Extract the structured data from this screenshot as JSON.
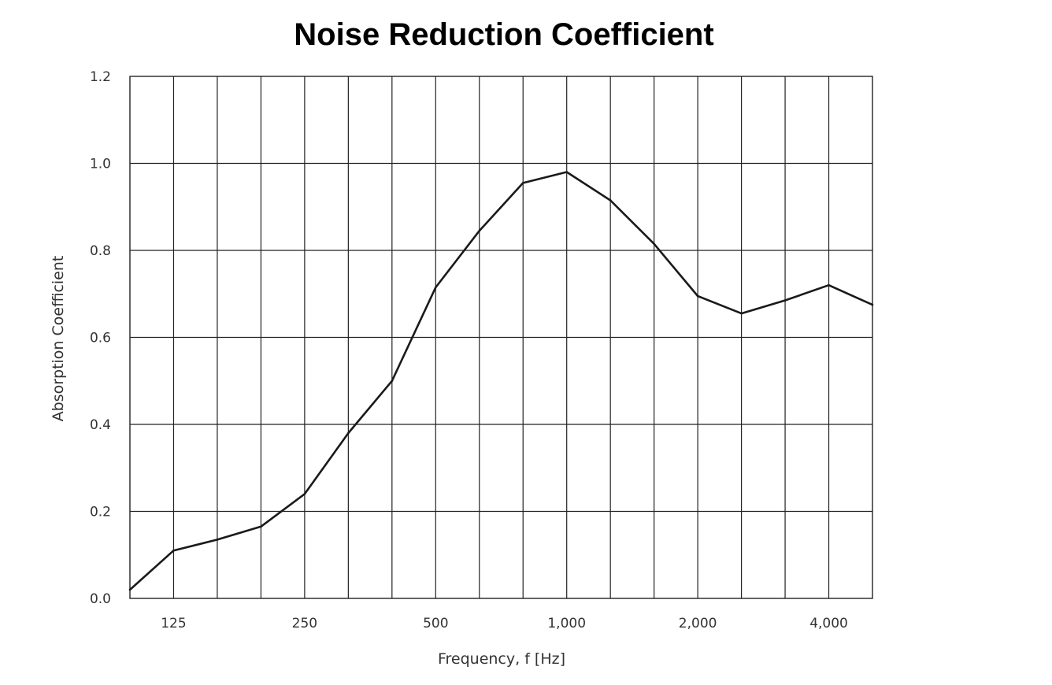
{
  "chart_data": {
    "type": "line",
    "title": "Noise Reduction Coefficient",
    "xlabel": "Frequency, f [Hz]",
    "ylabel": "Absorption Coefficient",
    "x_scale": "log2 (third-octave bands)",
    "x": [
      100,
      125,
      160,
      200,
      250,
      315,
      400,
      500,
      630,
      800,
      1000,
      1250,
      1600,
      2000,
      2500,
      3150,
      4000,
      5000
    ],
    "x_tick_labels": [
      {
        "x": 125,
        "label": "125"
      },
      {
        "x": 250,
        "label": "250"
      },
      {
        "x": 500,
        "label": "500"
      },
      {
        "x": 1000,
        "label": "1,000"
      },
      {
        "x": 2000,
        "label": "2,000"
      },
      {
        "x": 4000,
        "label": "4,000"
      }
    ],
    "y_ticks": [
      "0.0",
      "0.2",
      "0.4",
      "0.6",
      "0.8",
      "1.0",
      "1.2"
    ],
    "ylim": [
      0,
      1.2
    ],
    "grid": true,
    "series": [
      {
        "values": [
          0.02,
          0.11,
          0.135,
          0.165,
          0.24,
          0.38,
          0.5,
          0.715,
          0.845,
          0.955,
          0.98,
          0.915,
          0.815,
          0.695,
          0.655,
          0.685,
          0.72,
          0.675
        ]
      }
    ],
    "colors": {
      "line": "#1a1a1a",
      "grid": "#222222",
      "background": "#ffffff"
    }
  }
}
